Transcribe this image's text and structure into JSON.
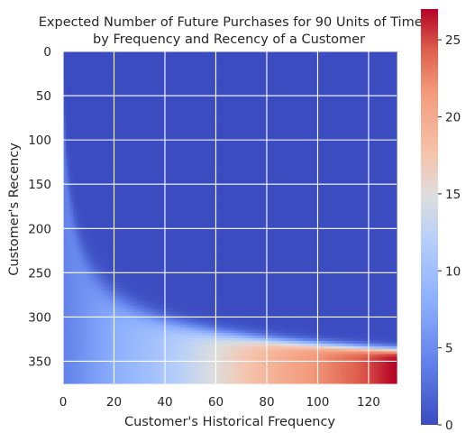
{
  "chart_data": {
    "type": "heatmap",
    "title": "Expected Number of Future Purchases for 90 Units of Time,",
    "subtitle": "by Frequency and Recency of a Customer",
    "xlabel": "Customer's Historical Frequency",
    "ylabel": "Customer's Recency",
    "x_range": [
      0,
      131
    ],
    "y_range": [
      0,
      375
    ],
    "y_inverted": true,
    "x_ticks": [
      0,
      20,
      40,
      60,
      80,
      100,
      120
    ],
    "y_ticks": [
      0,
      50,
      100,
      150,
      200,
      250,
      300,
      350
    ],
    "grid": true,
    "colormap": "coolwarm",
    "colorbar": {
      "min": 0,
      "max": 27,
      "ticks": [
        0,
        5,
        10,
        15,
        20,
        25
      ],
      "position": "right"
    },
    "values_description_points": {
      "x": [
        0,
        20,
        40,
        60,
        80,
        100,
        120,
        130
      ],
      "value_at_max_recency": [
        4,
        8,
        11,
        15,
        19,
        22,
        25,
        27
      ]
    },
    "colors": {
      "low": "#3b4cc0",
      "mid": "#dddddd",
      "high": "#b40426",
      "grid": "#ffffff"
    }
  }
}
